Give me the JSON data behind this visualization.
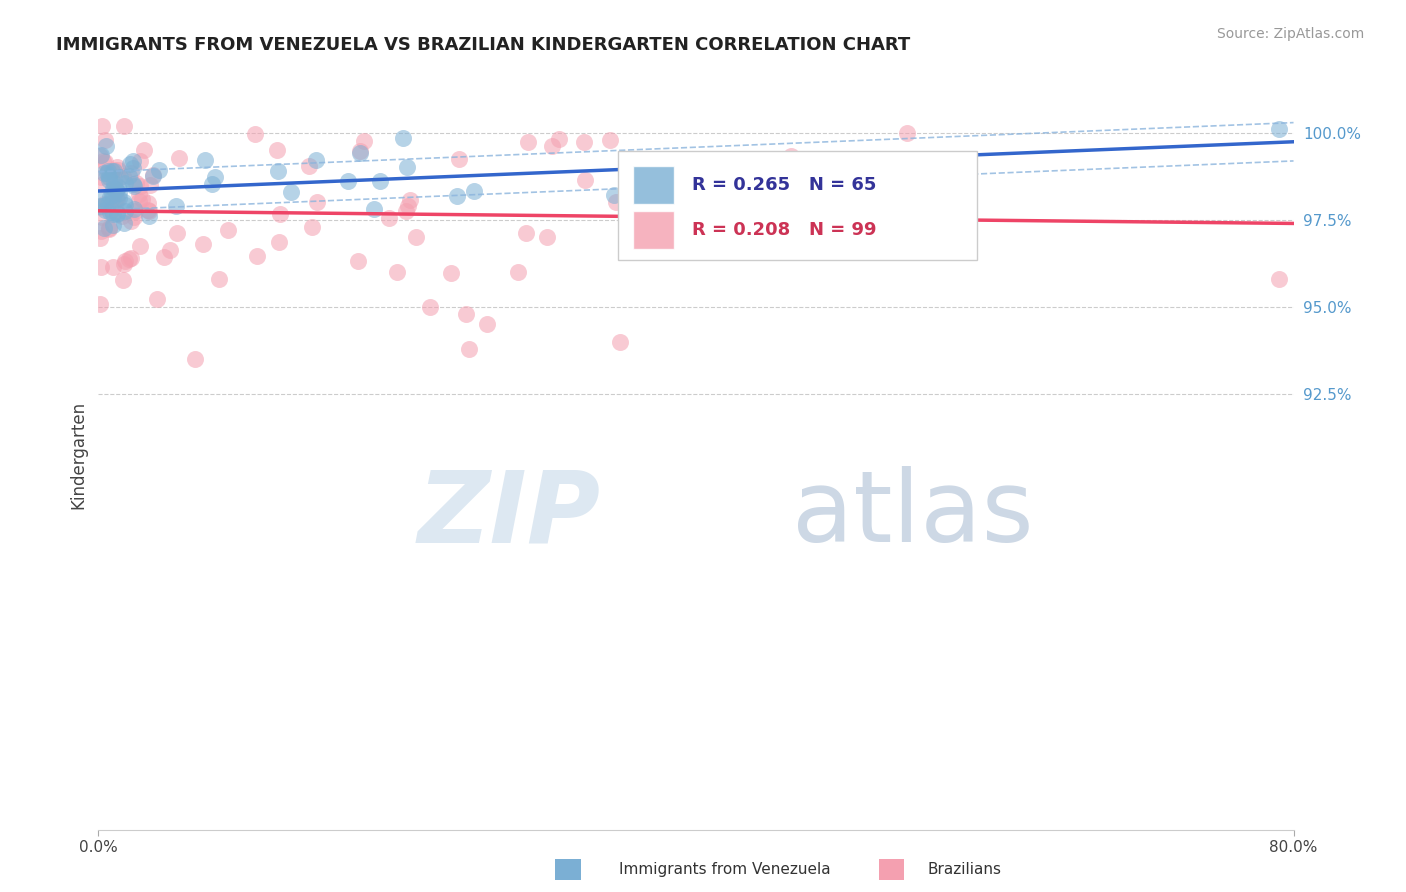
{
  "title": "IMMIGRANTS FROM VENEZUELA VS BRAZILIAN KINDERGARTEN CORRELATION CHART",
  "source": "Source: ZipAtlas.com",
  "ylabel": "Kindergarten",
  "xmin": 0.0,
  "xmax": 0.8,
  "ymin": 0.8,
  "ymax": 1.015,
  "yticks": [
    1.0,
    0.975,
    0.95,
    0.925
  ],
  "ytick_labels": [
    "100.0%",
    "97.5%",
    "95.0%",
    "92.5%"
  ],
  "blue_R": 0.265,
  "blue_N": 65,
  "pink_R": 0.208,
  "pink_N": 99,
  "blue_color": "#7BAFD4",
  "pink_color": "#F4A0B0",
  "blue_line_color": "#3366CC",
  "pink_line_color": "#EE4466",
  "blue_fill_color": "#AACCEE",
  "right_tick_color": "#5599CC",
  "watermark_zip_color": "#E0E8F0",
  "watermark_atlas_color": "#D8E4EE",
  "seed": 123
}
